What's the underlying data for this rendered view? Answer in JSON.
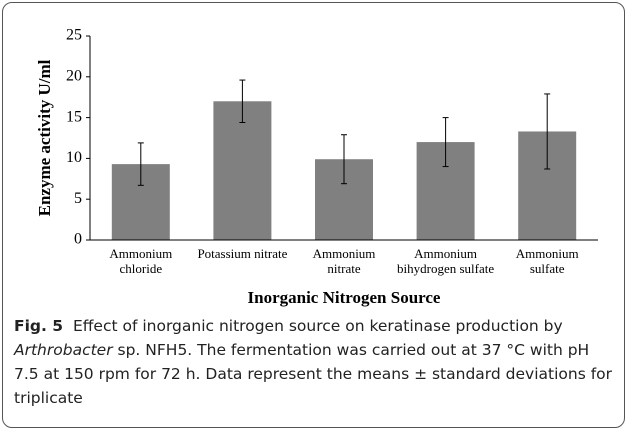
{
  "chart_data": {
    "type": "bar",
    "categories": [
      "Ammonium\nchloride",
      "Potassium nitrate",
      "Ammonium\nnitrate",
      "Ammonium\nbihydrogen sulfate",
      "Ammonium\nsulfate"
    ],
    "values": [
      9.3,
      17.0,
      9.9,
      12.0,
      13.3
    ],
    "errors": [
      2.6,
      2.6,
      3.0,
      3.0,
      4.6
    ],
    "color": "#808080",
    "ylim": [
      0,
      25
    ],
    "yticks": [
      0,
      5,
      10,
      15,
      20,
      25
    ],
    "ylabel": "Enzyme activity U/ml",
    "xlabel": "Inorganic Nitrogen Source"
  },
  "caption": {
    "label": "Fig. 5",
    "text_before": "Effect of inorganic nitrogen source on keratinase production by ",
    "italic": "Arthrobacter",
    "text_after": " sp. NFH5. The fermentation was carried out at 37 °C with pH 7.5 at 150 rpm for 72 h. Data represent the means ± standard deviations for triplicate"
  }
}
